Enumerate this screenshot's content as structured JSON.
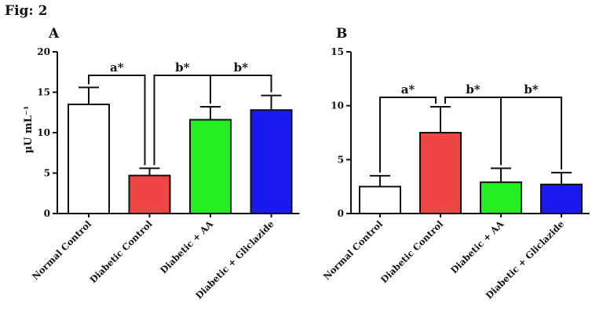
{
  "figure_label": "Fig: 2",
  "chart_data": [
    {
      "type": "bar",
      "panel": "A",
      "categories": [
        "Normal Control",
        "Diabetic Control",
        "Diabetic + AA",
        "Diabetic + Gliclazide"
      ],
      "values": [
        13.5,
        4.7,
        11.6,
        12.8
      ],
      "errors": [
        2.1,
        0.9,
        1.6,
        1.8
      ],
      "colors": [
        "#ffffff",
        "#f04545",
        "#22ee22",
        "#1a1aee"
      ],
      "ylabel_unit": "µU mL⁻¹",
      "ylim": [
        0,
        20
      ],
      "yticks": [
        0,
        5,
        10,
        15,
        20
      ],
      "significance": [
        {
          "label": "a*",
          "from": 0,
          "to": [
            1
          ]
        },
        {
          "label": "b*",
          "from": 1,
          "to": [
            2
          ]
        },
        {
          "label": "b*",
          "from": 1,
          "to": [
            3
          ]
        }
      ]
    },
    {
      "type": "bar",
      "panel": "B",
      "categories": [
        "Normal Control",
        "Diabetic Control",
        "Diabetic + AA",
        "Diabetic + Gliclazide"
      ],
      "values": [
        2.5,
        7.5,
        2.9,
        2.7
      ],
      "errors": [
        1.0,
        2.4,
        1.3,
        1.1
      ],
      "colors": [
        "#ffffff",
        "#f04545",
        "#22ee22",
        "#1a1aee"
      ],
      "ylabel_unit": "",
      "ylim": [
        0,
        15
      ],
      "yticks": [
        0,
        5,
        10,
        15
      ],
      "significance": [
        {
          "label": "a*",
          "from": 0,
          "to": [
            1
          ]
        },
        {
          "label": "b*",
          "from": 1,
          "to": [
            2
          ]
        },
        {
          "label": "b*",
          "from": 1,
          "to": [
            3
          ]
        }
      ]
    }
  ]
}
